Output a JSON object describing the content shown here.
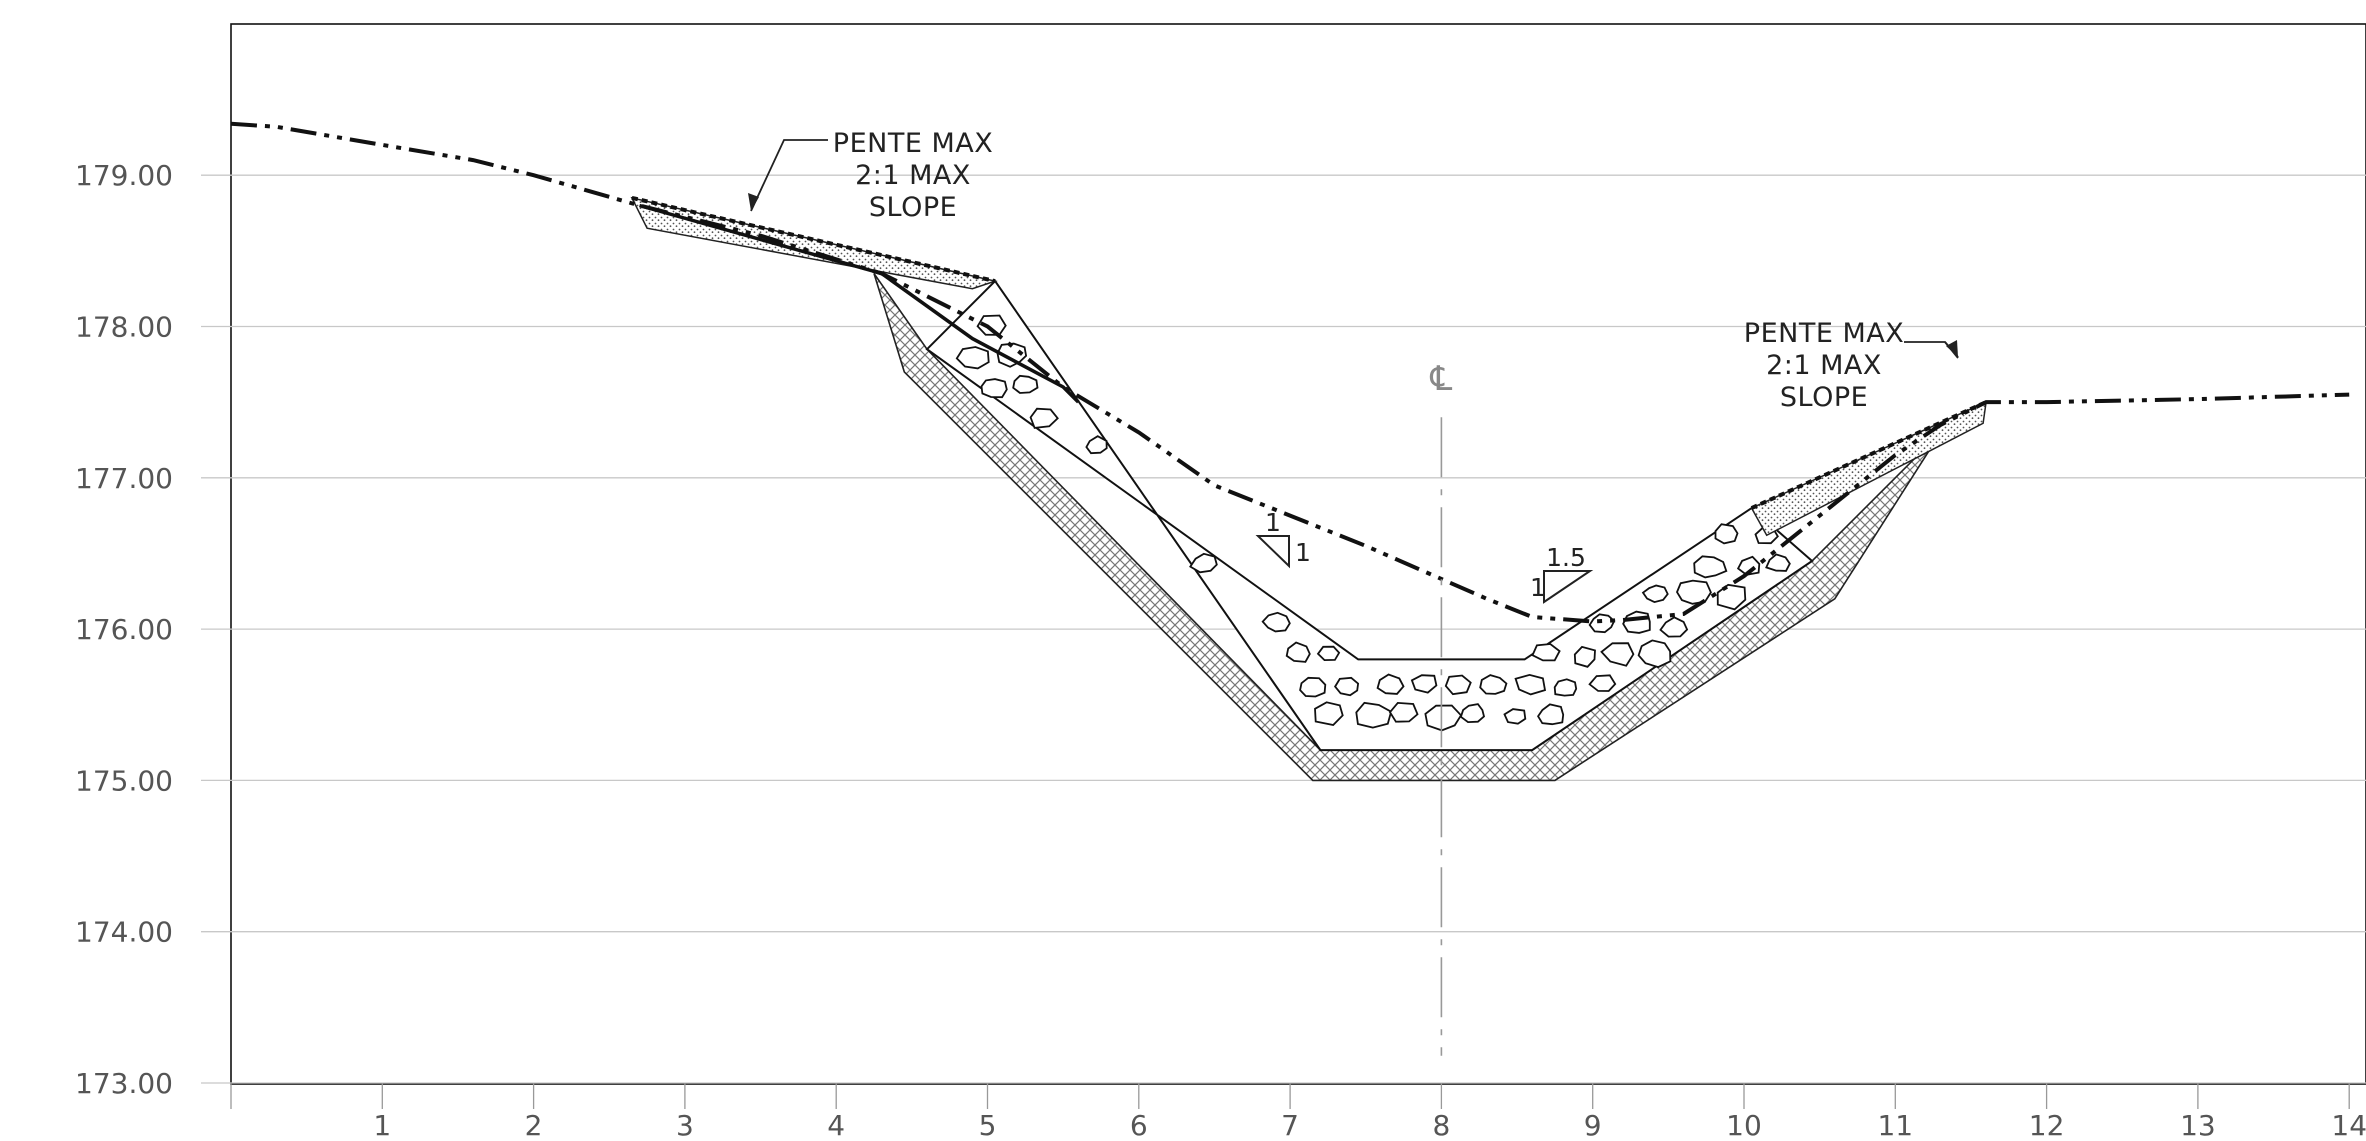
{
  "diagram": {
    "x_axis": {
      "range": [
        0,
        14
      ],
      "tick_labels": [
        "1",
        "2",
        "3",
        "4",
        "5",
        "6",
        "7",
        "8",
        "9",
        "10",
        "11",
        "12",
        "13",
        "14"
      ]
    },
    "y_axis": {
      "range": [
        173.0,
        180.0
      ],
      "tick_labels": [
        "179.00",
        "178.00",
        "177.00",
        "176.00",
        "175.00",
        "174.00",
        "173.00"
      ]
    },
    "grid": true,
    "centerline": {
      "label": "℄",
      "x": 8
    },
    "notes": {
      "left": [
        "PENTE MAX",
        "2:1 MAX",
        "SLOPE"
      ],
      "right": [
        "PENTE MAX",
        "2:1 MAX",
        "SLOPE"
      ]
    },
    "slope_ratios": {
      "left": {
        "rise": "1",
        "run": "1"
      },
      "right": {
        "rise": "1",
        "run": "1.5"
      }
    },
    "profiles": {
      "existing_ground": [
        [
          0,
          179.34
        ],
        [
          0.3,
          179.32
        ],
        [
          1,
          179.2
        ],
        [
          1.6,
          179.1
        ],
        [
          2,
          179.0
        ],
        [
          2.7,
          178.8
        ],
        [
          3.5,
          178.6
        ],
        [
          4.3,
          178.35
        ],
        [
          5,
          178.0
        ],
        [
          5.5,
          177.6
        ],
        [
          6,
          177.3
        ],
        [
          6.5,
          176.95
        ],
        [
          7.5,
          176.55
        ],
        [
          8.3,
          176.2
        ],
        [
          8.6,
          176.08
        ],
        [
          9,
          176.05
        ],
        [
          9.2,
          176.06
        ],
        [
          9.6,
          176.1
        ],
        [
          10,
          176.35
        ],
        [
          10.5,
          176.75
        ],
        [
          11,
          177.15
        ],
        [
          11.3,
          177.35
        ],
        [
          11.6,
          177.5
        ],
        [
          12,
          177.5
        ],
        [
          13,
          177.52
        ],
        [
          14,
          177.55
        ]
      ],
      "riprap_outer": [
        [
          5.05,
          178.3
        ],
        [
          4.6,
          177.85
        ],
        [
          7.45,
          175.8
        ],
        [
          8.55,
          175.8
        ],
        [
          10.05,
          176.8
        ],
        [
          10.45,
          176.45
        ],
        [
          8.6,
          175.2
        ],
        [
          7.2,
          175.2
        ]
      ],
      "filter_outer": [
        [
          4.25,
          178.35
        ],
        [
          4.45,
          177.7
        ],
        [
          7.15,
          175.0
        ],
        [
          8.75,
          175.0
        ],
        [
          10.6,
          176.2
        ],
        [
          11.3,
          177.3
        ]
      ],
      "topsoil_left": [
        [
          2.65,
          178.85
        ],
        [
          5.05,
          178.3
        ]
      ],
      "topsoil_right": [
        [
          10.05,
          176.8
        ],
        [
          11.6,
          177.5
        ]
      ],
      "design_line": [
        [
          2.7,
          178.8
        ],
        [
          4.3,
          178.35
        ],
        [
          4.9,
          177.92
        ],
        [
          5.5,
          177.6
        ],
        [
          5.6,
          177.5
        ]
      ]
    }
  }
}
